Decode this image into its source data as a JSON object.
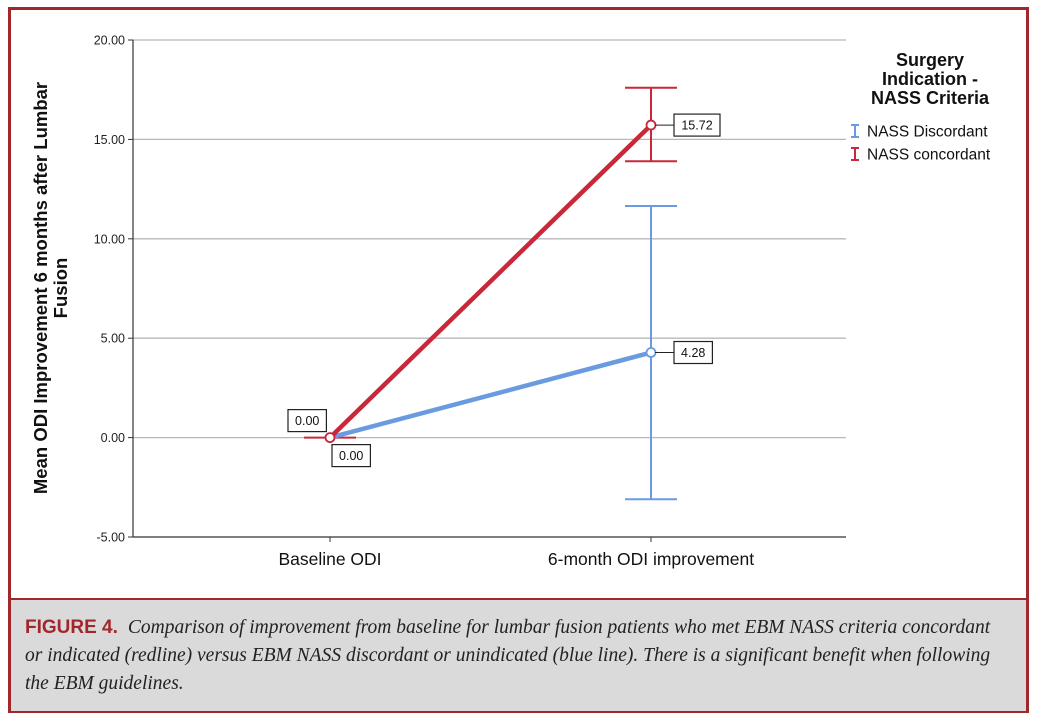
{
  "chart_data": {
    "type": "line",
    "categories": [
      "Baseline ODI",
      "6-month ODI improvement"
    ],
    "ylabel_lines": [
      "Mean ODI Improvement 6 months after Lumbar",
      "Fusion"
    ],
    "xlabel": "",
    "ylim": [
      -5,
      20
    ],
    "yticks": [
      -5,
      0,
      5,
      10,
      15,
      20
    ],
    "ytick_labels": [
      "-5.00",
      "0.00",
      "5.00",
      "10.00",
      "15.00",
      "20.00"
    ],
    "grid": true,
    "legend": {
      "title_lines": [
        "Surgery",
        "Indication -",
        "NASS Criteria"
      ],
      "placement": "right"
    },
    "series": [
      {
        "name": "NASS Discordant",
        "color": "#6a9be0",
        "values": [
          0.0,
          4.28
        ],
        "error_low": [
          0.0,
          -3.1
        ],
        "error_high": [
          0.0,
          11.65
        ],
        "labels": [
          "0.00",
          "4.28"
        ]
      },
      {
        "name": "NASS concordant",
        "color": "#c8283a",
        "values": [
          0.0,
          15.72
        ],
        "error_low": [
          0.0,
          13.9
        ],
        "error_high": [
          0.0,
          17.6
        ],
        "labels": [
          "0.00",
          "15.72"
        ]
      }
    ]
  },
  "caption": {
    "label": "FIGURE 4.",
    "text": "Comparison of improvement from baseline for lumbar fusion patients who met EBM NASS criteria concordant or indicated (redline) versus EBM NASS discordant or unindicated (blue line). There is a significant benefit when following the EBM guidelines."
  },
  "colors": {
    "frame": "#a1272c",
    "caption_bg": "#dadada",
    "grid": "#b8b8b8"
  }
}
